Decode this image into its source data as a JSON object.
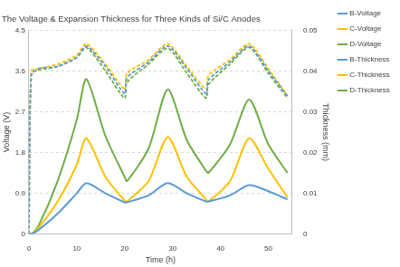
{
  "chart_data": {
    "type": "line",
    "title": "The Voltage & Expansion Thickness for Three Kinds of Si/C Anodes",
    "x_label": "Time (h)",
    "y_label": "Voltage (V)",
    "y2_label": "Thickness (mm)",
    "x": [
      0,
      0.5,
      2,
      6,
      10,
      12,
      16,
      20,
      20.5,
      25,
      29,
      33,
      37,
      37.5,
      42,
      46,
      50,
      54
    ],
    "xlim": [
      0,
      55
    ],
    "xticks": [
      0,
      10,
      20,
      30,
      40,
      50
    ],
    "ylim": [
      0,
      4.5
    ],
    "yticks": [
      0,
      0.9,
      1.8,
      2.7,
      3.6,
      4.5
    ],
    "y2lim": [
      0,
      0.05
    ],
    "y2ticks": [
      0,
      0.01,
      0.02,
      0.03,
      0.04,
      0.05
    ],
    "grid": true,
    "legend": "right",
    "series": [
      {
        "name": "B-Voltage",
        "color": "#5b9bd5",
        "line_style": "dashed",
        "axis": "y",
        "values": [
          0,
          3.5,
          3.65,
          3.7,
          3.9,
          4.15,
          3.7,
          3.1,
          3.45,
          3.8,
          4.15,
          3.65,
          3.1,
          3.4,
          3.8,
          4.15,
          3.6,
          3.05
        ]
      },
      {
        "name": "C-Voltage",
        "color": "#ffc000",
        "line_style": "dashed",
        "axis": "y",
        "values": [
          0,
          3.6,
          3.65,
          3.75,
          3.95,
          4.2,
          3.75,
          3.2,
          3.55,
          3.85,
          4.2,
          3.7,
          3.2,
          3.5,
          3.85,
          4.2,
          3.65,
          3.05
        ]
      },
      {
        "name": "D-Voltage",
        "color": "#70ad47",
        "line_style": "dashed",
        "axis": "y",
        "values": [
          0,
          3.55,
          3.62,
          3.7,
          3.9,
          4.12,
          3.6,
          3.0,
          3.35,
          3.75,
          4.1,
          3.55,
          3.0,
          3.3,
          3.75,
          4.12,
          3.55,
          3.0
        ]
      },
      {
        "name": "B-Thickness",
        "color": "#5b9bd5",
        "line_style": "solid",
        "axis": "y2",
        "values": [
          0,
          0,
          0.001,
          0.005,
          0.01,
          0.0125,
          0.01,
          0.0078,
          0.0078,
          0.0095,
          0.0125,
          0.01,
          0.008,
          0.008,
          0.0095,
          0.012,
          0.0105,
          0.0085
        ]
      },
      {
        "name": "C-Thickness",
        "color": "#ffc000",
        "line_style": "solid",
        "axis": "y2",
        "values": [
          0,
          0,
          0.0015,
          0.008,
          0.017,
          0.0235,
          0.014,
          0.0082,
          0.008,
          0.013,
          0.0238,
          0.014,
          0.0085,
          0.008,
          0.013,
          0.0235,
          0.016,
          0.009
        ]
      },
      {
        "name": "D-Thickness",
        "color": "#70ad47",
        "line_style": "solid",
        "axis": "y2",
        "values": [
          0,
          0,
          0.002,
          0.013,
          0.028,
          0.038,
          0.024,
          0.014,
          0.013,
          0.021,
          0.0355,
          0.023,
          0.0155,
          0.015,
          0.022,
          0.033,
          0.022,
          0.015
        ]
      }
    ]
  }
}
